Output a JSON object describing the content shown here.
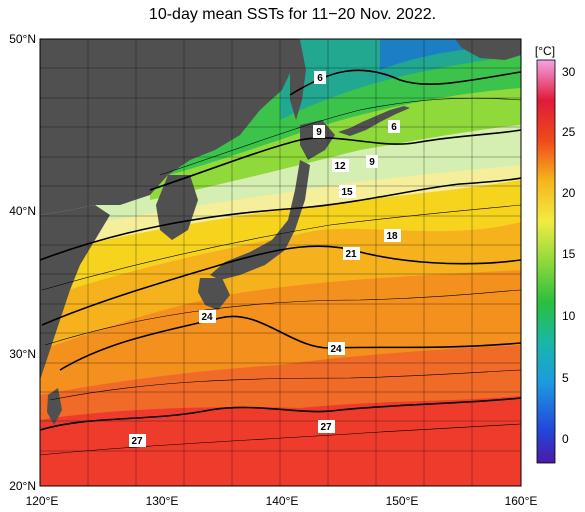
{
  "title": "10-day mean SSTs for 11−20 Nov. 2022.",
  "lon_ticks": [
    "120°E",
    "130°E",
    "140°E",
    "150°E",
    "160°E"
  ],
  "lat_ticks": [
    "50°N",
    "40°N",
    "30°N",
    "20°N"
  ],
  "colorbar": {
    "unit": "[°C]",
    "ticks": [
      "30",
      "25",
      "20",
      "15",
      "10",
      "5",
      "0"
    ],
    "range": [
      -2,
      32
    ]
  },
  "contour_labels": [
    "6",
    "6",
    "9",
    "9",
    "12",
    "15",
    "18",
    "21",
    "24",
    "24",
    "27",
    "27"
  ],
  "colors": {
    "land": "#505050",
    "sst_27": "#ef3b2c",
    "sst_24": "#f4901e",
    "sst_20": "#f6d41e",
    "sst_15": "#d4efb1",
    "sst_10": "#3cc34b",
    "sst_6": "#22a890"
  }
}
